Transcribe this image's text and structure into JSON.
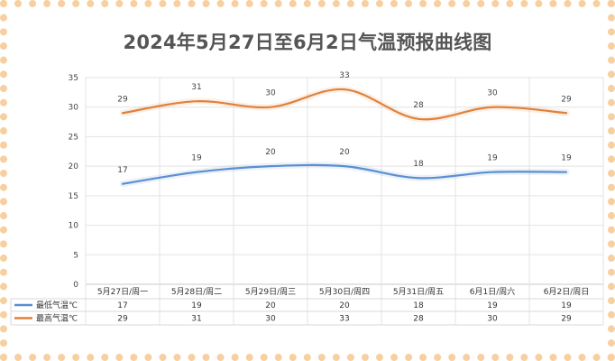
{
  "chart_data": {
    "type": "line",
    "title": "2024年5月27日至6月2日气温预报曲线图",
    "categories": [
      "5月27日/周一",
      "5月28日/周二",
      "5月29日/周三",
      "5月30日/周四",
      "5月31日/周五",
      "6月1日/周六",
      "6月2日/周日"
    ],
    "series": [
      {
        "name": "最低气温℃",
        "values": [
          17,
          19,
          20,
          20,
          18,
          19,
          19
        ],
        "color": "#5b8fd0"
      },
      {
        "name": "最高气温℃",
        "values": [
          29,
          31,
          30,
          33,
          28,
          30,
          29
        ],
        "color": "#e0813a"
      }
    ],
    "ylim": [
      0,
      35
    ],
    "yticks": [
      0,
      5,
      10,
      15,
      20,
      25,
      30,
      35
    ],
    "grid": true,
    "legend": "data-table",
    "smooth": true
  }
}
